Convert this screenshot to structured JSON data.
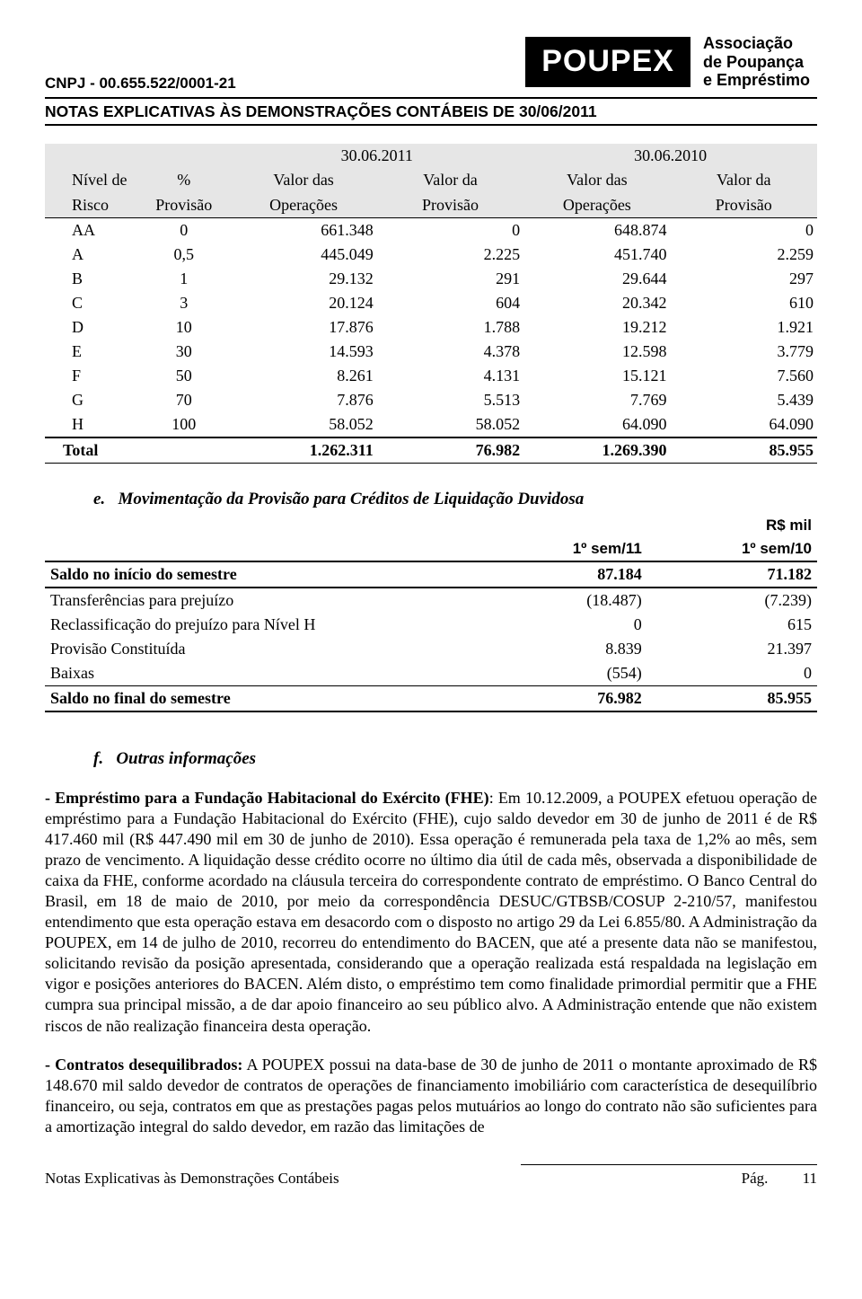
{
  "header": {
    "cnpj": "CNPJ - 00.655.522/0001-21",
    "title": "NOTAS EXPLICATIVAS ÀS DEMONSTRAÇÕES CONTÁBEIS DE 30/06/2011",
    "logo_text": "POUPEX",
    "logo_side_line1": "Associação",
    "logo_side_line2": "de Poupança",
    "logo_side_line3": "e Empréstimo"
  },
  "tableA": {
    "date1": "30.06.2011",
    "date2": "30.06.2010",
    "hdr1_col0": "Nível de",
    "hdr1_col1": "%",
    "hdr1_col2": "Valor das",
    "hdr1_col3": "Valor da",
    "hdr1_col4": "Valor das",
    "hdr1_col5": "Valor da",
    "hdr2_col0": "Risco",
    "hdr2_col1": "Provisão",
    "hdr2_col2": "Operações",
    "hdr2_col3": "Provisão",
    "hdr2_col4": "Operações",
    "hdr2_col5": "Provisão",
    "rows": [
      {
        "c0": "AA",
        "c1": "0",
        "c2": "661.348",
        "c3": "0",
        "c4": "648.874",
        "c5": "0"
      },
      {
        "c0": "A",
        "c1": "0,5",
        "c2": "445.049",
        "c3": "2.225",
        "c4": "451.740",
        "c5": "2.259"
      },
      {
        "c0": "B",
        "c1": "1",
        "c2": "29.132",
        "c3": "291",
        "c4": "29.644",
        "c5": "297"
      },
      {
        "c0": "C",
        "c1": "3",
        "c2": "20.124",
        "c3": "604",
        "c4": "20.342",
        "c5": "610"
      },
      {
        "c0": "D",
        "c1": "10",
        "c2": "17.876",
        "c3": "1.788",
        "c4": "19.212",
        "c5": "1.921"
      },
      {
        "c0": "E",
        "c1": "30",
        "c2": "14.593",
        "c3": "4.378",
        "c4": "12.598",
        "c5": "3.779"
      },
      {
        "c0": "F",
        "c1": "50",
        "c2": "8.261",
        "c3": "4.131",
        "c4": "15.121",
        "c5": "7.560"
      },
      {
        "c0": "G",
        "c1": "70",
        "c2": "7.876",
        "c3": "5.513",
        "c4": "7.769",
        "c5": "5.439"
      },
      {
        "c0": "H",
        "c1": "100",
        "c2": "58.052",
        "c3": "58.052",
        "c4": "64.090",
        "c5": "64.090"
      }
    ],
    "total_label": "Total",
    "total_c2": "1.262.311",
    "total_c3": "76.982",
    "total_c4": "1.269.390",
    "total_c5": "85.955"
  },
  "section_e": {
    "letter": "e.",
    "title": "Movimentação da Provisão para Créditos de Liquidação Duvidosa",
    "unit": "R$ mil",
    "col1": "1º sem/11",
    "col2": "1º sem/10",
    "rows": {
      "r0": {
        "label": "Saldo no início do semestre",
        "v1": "87.184",
        "v2": "71.182",
        "bold": true
      },
      "r1": {
        "label": "Transferências para prejuízo",
        "v1": "(18.487)",
        "v2": "(7.239)"
      },
      "r2": {
        "label": "Reclassificação do prejuízo para Nível H",
        "v1": "0",
        "v2": "615"
      },
      "r3": {
        "label": "Provisão Constituída",
        "v1": "8.839",
        "v2": "21.397"
      },
      "r4": {
        "label": "Baixas",
        "v1": "(554)",
        "v2": "0"
      },
      "r5": {
        "label": "Saldo no final do semestre",
        "v1": "76.982",
        "v2": "85.955",
        "bold": true
      }
    }
  },
  "section_f": {
    "letter": "f.",
    "title": "Outras informações",
    "p1_lead": "- Empréstimo para a Fundação Habitacional do Exército (FHE)",
    "p1_rest": ": Em 10.12.2009, a POUPEX efetuou operação de empréstimo para a Fundação Habitacional do Exército (FHE), cujo saldo devedor em 30 de junho de 2011 é de R$ 417.460 mil (R$ 447.490 mil em 30 de junho de 2010). Essa operação é remunerada pela taxa de 1,2% ao mês, sem prazo de vencimento. A liquidação desse crédito ocorre no último dia útil de cada mês, observada a disponibilidade de caixa da FHE, conforme acordado na cláusula terceira do correspondente contrato de empréstimo.  O Banco Central do Brasil, em 18 de maio de 2010, por meio da correspondência DESUC/GTBSB/COSUP 2-210/57, manifestou entendimento que esta operação estava em desacordo com o disposto no artigo 29 da Lei 6.855/80. A Administração da POUPEX, em 14 de julho de 2010, recorreu do entendimento do BACEN, que até a presente data não se manifestou, solicitando revisão da posição apresentada, considerando que a operação realizada está respaldada na legislação em vigor e posições anteriores do BACEN. Além disto, o empréstimo tem como finalidade primordial permitir que a FHE cumpra sua principal missão, a de dar apoio financeiro ao seu público alvo. A Administração entende que não existem riscos de não realização financeira desta operação.",
    "p2_lead": "- Contratos desequilibrados:",
    "p2_rest": " A POUPEX possui na data-base de 30 de junho de 2011 o montante aproximado de R$ 148.670 mil saldo devedor de contratos de operações de financiamento imobiliário com característica de desequilíbrio financeiro, ou seja, contratos em que as prestações pagas pelos mutuários ao longo do contrato não são suficientes para a amortização integral do saldo devedor, em razão das limitações de"
  },
  "footer": {
    "left": "Notas Explicativas às Demonstrações Contábeis",
    "right_label": "Pág.",
    "right_page": "11"
  }
}
